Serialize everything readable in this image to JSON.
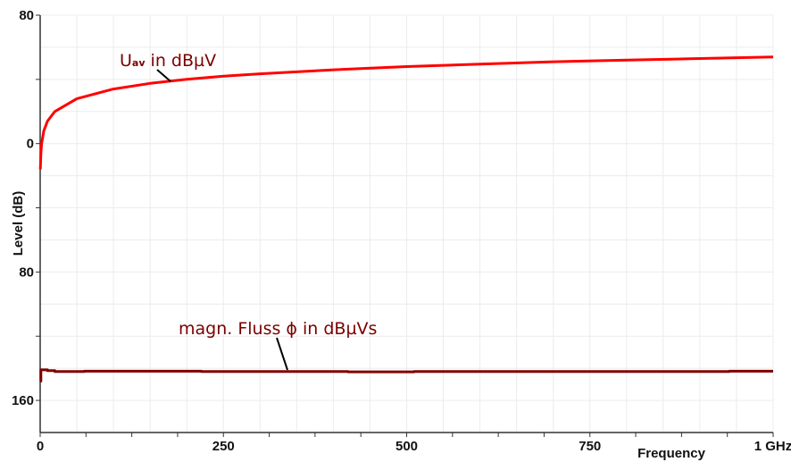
{
  "chart_data": {
    "type": "line",
    "xlabel": "Frequency",
    "ylabel": "Level (dB)",
    "xlim": [
      0,
      1000
    ],
    "ylim": [
      -180,
      80
    ],
    "x_ticks": [
      {
        "v": 0,
        "label": "0"
      },
      {
        "v": 250,
        "label": "250"
      },
      {
        "v": 500,
        "label": "500"
      },
      {
        "v": 750,
        "label": "750"
      },
      {
        "v": 1000,
        "label": "1 GHz"
      }
    ],
    "y_ticks": [
      {
        "v": 80,
        "label": "80"
      },
      {
        "v": 0,
        "label": "0"
      },
      {
        "v": -80,
        "label": "80"
      },
      {
        "v": -160,
        "label": "160"
      }
    ],
    "grid": true,
    "series": [
      {
        "name": "Uav in dBµV",
        "label_main": "U",
        "label_sub": "av",
        "label_rest": " in dBµV",
        "color": "#ff0000",
        "x": [
          0.3,
          1,
          2,
          5,
          10,
          20,
          50,
          100,
          150,
          200,
          250,
          300,
          400,
          500,
          600,
          700,
          800,
          900,
          1000
        ],
        "y": [
          -16,
          -6,
          0,
          8,
          14,
          20,
          28,
          34,
          37.5,
          40,
          42,
          43.5,
          46,
          48,
          49.5,
          51,
          52,
          53,
          54
        ]
      },
      {
        "name": "magn. Fluss ϕ in dBµVs",
        "color": "#800000",
        "x": [
          0,
          1,
          10,
          20,
          60,
          220,
          420,
          510,
          750,
          940,
          1000
        ],
        "y": [
          -148,
          -141,
          -141.5,
          -142,
          -141.8,
          -142,
          -142.2,
          -142,
          -142,
          -141.8,
          -141.8
        ]
      }
    ]
  }
}
